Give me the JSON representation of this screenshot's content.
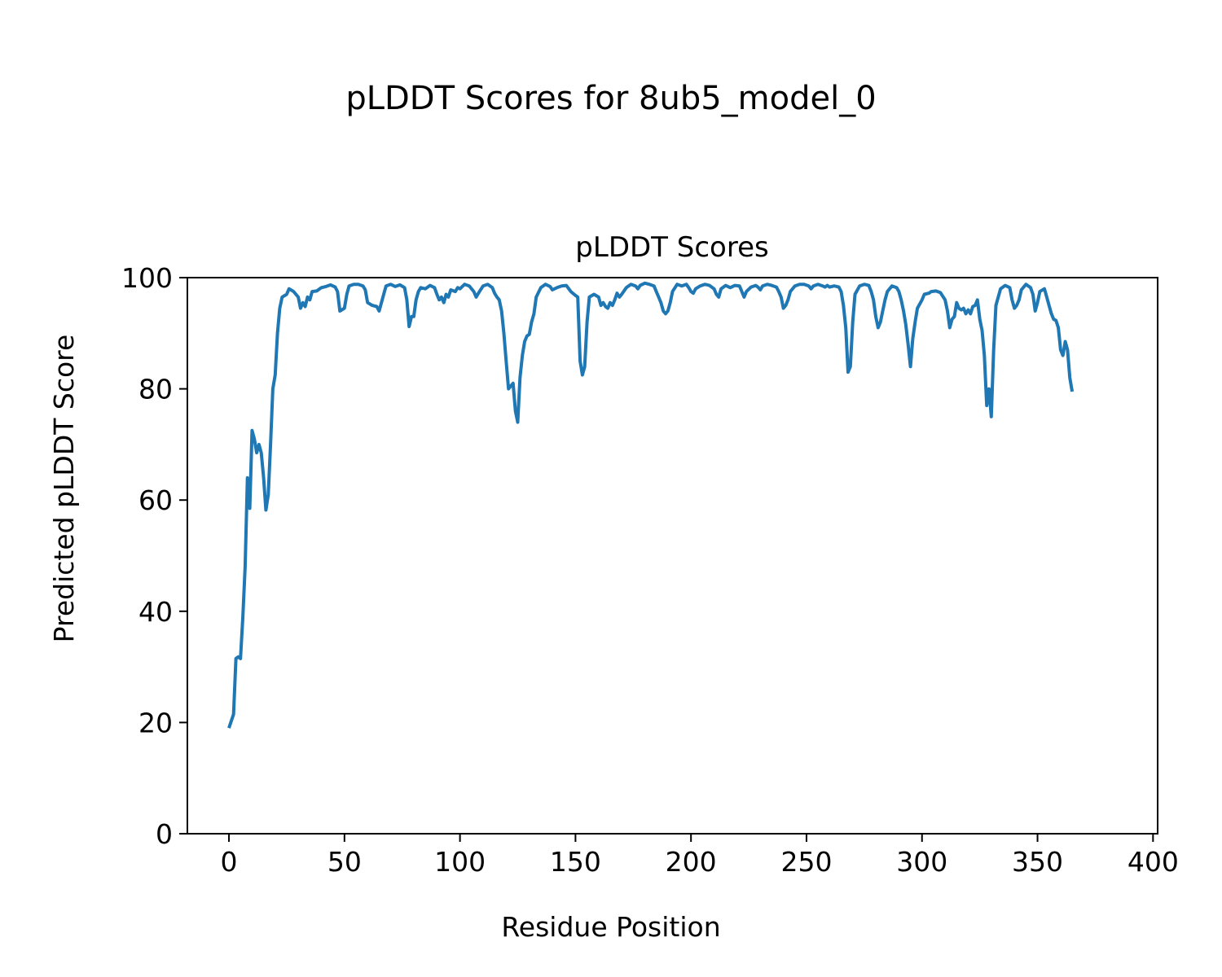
{
  "figure": {
    "suptitle": "pLDDT Scores for 8ub5_model_0"
  },
  "chart_data": {
    "type": "line",
    "title": "pLDDT Scores",
    "xlabel": "Residue Position",
    "ylabel": "Predicted pLDDT Score",
    "xlim": [
      -18,
      402
    ],
    "ylim": [
      0,
      100
    ],
    "xticks": [
      0,
      50,
      100,
      150,
      200,
      250,
      300,
      350,
      400
    ],
    "yticks": [
      0,
      20,
      40,
      60,
      80,
      100
    ],
    "xtick_labels": [
      "0",
      "50",
      "100",
      "150",
      "200",
      "250",
      "300",
      "350",
      "400"
    ],
    "ytick_labels": [
      "0",
      "20",
      "40",
      "60",
      "80",
      "100"
    ],
    "grid": false,
    "series": [
      {
        "color": "#1f77b4",
        "points": [
          [
            0,
            19
          ],
          [
            2,
            21.5
          ],
          [
            3,
            31.5
          ],
          [
            4,
            31.8
          ],
          [
            5,
            31.5
          ],
          [
            6,
            39
          ],
          [
            7,
            48
          ],
          [
            8,
            64
          ],
          [
            9,
            58.5
          ],
          [
            10,
            72.5
          ],
          [
            11,
            71
          ],
          [
            12,
            68.5
          ],
          [
            13,
            70
          ],
          [
            14,
            68.5
          ],
          [
            15,
            64
          ],
          [
            16,
            58.2
          ],
          [
            17,
            61
          ],
          [
            18,
            70
          ],
          [
            19,
            80
          ],
          [
            20,
            82.5
          ],
          [
            21,
            90
          ],
          [
            22,
            94.5
          ],
          [
            23,
            96.5
          ],
          [
            25,
            97
          ],
          [
            26,
            98
          ],
          [
            28,
            97.5
          ],
          [
            30,
            96.5
          ],
          [
            31,
            94.5
          ],
          [
            32,
            95.5
          ],
          [
            33,
            94.8
          ],
          [
            34,
            96.5
          ],
          [
            35,
            96
          ],
          [
            36,
            97.5
          ],
          [
            38,
            97.6
          ],
          [
            40,
            98.2
          ],
          [
            42,
            98.4
          ],
          [
            44,
            98.7
          ],
          [
            46,
            98.3
          ],
          [
            47,
            97.5
          ],
          [
            48,
            94
          ],
          [
            50,
            94.5
          ],
          [
            51,
            97
          ],
          [
            52,
            98.5
          ],
          [
            54,
            98.8
          ],
          [
            56,
            98.8
          ],
          [
            58,
            98.5
          ],
          [
            59,
            97.8
          ],
          [
            60,
            95.5
          ],
          [
            62,
            95
          ],
          [
            64,
            94.8
          ],
          [
            65,
            94
          ],
          [
            67,
            97
          ],
          [
            68,
            98.5
          ],
          [
            70,
            98.8
          ],
          [
            72,
            98.4
          ],
          [
            74,
            98.7
          ],
          [
            76,
            98.2
          ],
          [
            77,
            96
          ],
          [
            78,
            91.2
          ],
          [
            79,
            93
          ],
          [
            80,
            93
          ],
          [
            81,
            96
          ],
          [
            82,
            97.5
          ],
          [
            83,
            98.2
          ],
          [
            85,
            98
          ],
          [
            87,
            98.6
          ],
          [
            89,
            98.2
          ],
          [
            90,
            97
          ],
          [
            91,
            96
          ],
          [
            92,
            96.5
          ],
          [
            93,
            95.5
          ],
          [
            94,
            97
          ],
          [
            95,
            96.5
          ],
          [
            96,
            97.8
          ],
          [
            98,
            97.5
          ],
          [
            99,
            98.2
          ],
          [
            100,
            98
          ],
          [
            102,
            98.8
          ],
          [
            104,
            98.5
          ],
          [
            106,
            97.5
          ],
          [
            107,
            96.5
          ],
          [
            108,
            97.2
          ],
          [
            110,
            98.5
          ],
          [
            112,
            98.8
          ],
          [
            114,
            98.2
          ],
          [
            115,
            97.2
          ],
          [
            116,
            96.5
          ],
          [
            117,
            96
          ],
          [
            118,
            94
          ],
          [
            119,
            90
          ],
          [
            120,
            85
          ],
          [
            121,
            80
          ],
          [
            122,
            80.5
          ],
          [
            123,
            81
          ],
          [
            124,
            76
          ],
          [
            125,
            74
          ],
          [
            126,
            82
          ],
          [
            127,
            86
          ],
          [
            128,
            88.5
          ],
          [
            129,
            89.5
          ],
          [
            130,
            89.8
          ],
          [
            131,
            92
          ],
          [
            132,
            93.5
          ],
          [
            133,
            96.5
          ],
          [
            135,
            98.2
          ],
          [
            137,
            98.8
          ],
          [
            139,
            98.4
          ],
          [
            140,
            97.8
          ],
          [
            142,
            98.2
          ],
          [
            144,
            98.5
          ],
          [
            146,
            98.6
          ],
          [
            148,
            97.5
          ],
          [
            150,
            96.8
          ],
          [
            151,
            96.5
          ],
          [
            152,
            85
          ],
          [
            153,
            82.5
          ],
          [
            154,
            84
          ],
          [
            155,
            92
          ],
          [
            156,
            96.5
          ],
          [
            158,
            97
          ],
          [
            160,
            96.5
          ],
          [
            161,
            95
          ],
          [
            162,
            95.5
          ],
          [
            163,
            94.8
          ],
          [
            164,
            94.5
          ],
          [
            165,
            95.5
          ],
          [
            166,
            95
          ],
          [
            167,
            96
          ],
          [
            168,
            97.2
          ],
          [
            169,
            96.5
          ],
          [
            170,
            97
          ],
          [
            172,
            98.2
          ],
          [
            174,
            98.8
          ],
          [
            176,
            98.5
          ],
          [
            177,
            98
          ],
          [
            178,
            98.6
          ],
          [
            180,
            99
          ],
          [
            182,
            98.8
          ],
          [
            184,
            98.5
          ],
          [
            185,
            97.5
          ],
          [
            186,
            96.5
          ],
          [
            187,
            95.5
          ],
          [
            188,
            94
          ],
          [
            189,
            93.5
          ],
          [
            190,
            94
          ],
          [
            191,
            95.5
          ],
          [
            192,
            97.5
          ],
          [
            194,
            98.8
          ],
          [
            196,
            98.5
          ],
          [
            198,
            98.8
          ],
          [
            199,
            98.2
          ],
          [
            200,
            97.5
          ],
          [
            201,
            97.2
          ],
          [
            202,
            98
          ],
          [
            204,
            98.5
          ],
          [
            206,
            98.8
          ],
          [
            208,
            98.6
          ],
          [
            210,
            98
          ],
          [
            211,
            97
          ],
          [
            212,
            96.5
          ],
          [
            213,
            98
          ],
          [
            215,
            98.6
          ],
          [
            217,
            98.2
          ],
          [
            219,
            98.6
          ],
          [
            221,
            98.5
          ],
          [
            222,
            97.5
          ],
          [
            223,
            96.5
          ],
          [
            224,
            97.5
          ],
          [
            226,
            98.3
          ],
          [
            228,
            98.6
          ],
          [
            229,
            98.3
          ],
          [
            230,
            97.8
          ],
          [
            231,
            98.5
          ],
          [
            233,
            98.8
          ],
          [
            235,
            98.6
          ],
          [
            237,
            98.3
          ],
          [
            238,
            97.5
          ],
          [
            239,
            96.5
          ],
          [
            240,
            94.5
          ],
          [
            241,
            95
          ],
          [
            242,
            96
          ],
          [
            243,
            97.5
          ],
          [
            245,
            98.5
          ],
          [
            247,
            98.8
          ],
          [
            249,
            98.8
          ],
          [
            251,
            98.5
          ],
          [
            252,
            98
          ],
          [
            253,
            98.5
          ],
          [
            255,
            98.8
          ],
          [
            257,
            98.5
          ],
          [
            258,
            98.3
          ],
          [
            259,
            98.6
          ],
          [
            260,
            98.3
          ],
          [
            262,
            98.5
          ],
          [
            264,
            98.3
          ],
          [
            265,
            97.5
          ],
          [
            266,
            95
          ],
          [
            267,
            91
          ],
          [
            268,
            83
          ],
          [
            269,
            84
          ],
          [
            270,
            92
          ],
          [
            271,
            97
          ],
          [
            273,
            98.5
          ],
          [
            275,
            98.8
          ],
          [
            277,
            98.6
          ],
          [
            278,
            97.5
          ],
          [
            279,
            96
          ],
          [
            280,
            93
          ],
          [
            281,
            91
          ],
          [
            282,
            92
          ],
          [
            283,
            94
          ],
          [
            284,
            96
          ],
          [
            285,
            97.5
          ],
          [
            287,
            98.5
          ],
          [
            289,
            98.2
          ],
          [
            290,
            97.5
          ],
          [
            291,
            96
          ],
          [
            292,
            94
          ],
          [
            293,
            91.5
          ],
          [
            294,
            88
          ],
          [
            295,
            84
          ],
          [
            296,
            89
          ],
          [
            297,
            92
          ],
          [
            298,
            94.5
          ],
          [
            300,
            96
          ],
          [
            301,
            97
          ],
          [
            303,
            97.2
          ],
          [
            304,
            97.5
          ],
          [
            306,
            97.6
          ],
          [
            308,
            97.3
          ],
          [
            310,
            96
          ],
          [
            311,
            94
          ],
          [
            312,
            91
          ],
          [
            313,
            92.5
          ],
          [
            314,
            93
          ],
          [
            315,
            95.5
          ],
          [
            316,
            94.5
          ],
          [
            317,
            94.2
          ],
          [
            318,
            94.5
          ],
          [
            319,
            93.5
          ],
          [
            320,
            94.2
          ],
          [
            321,
            93.5
          ],
          [
            322,
            94.8
          ],
          [
            323,
            95
          ],
          [
            324,
            96
          ],
          [
            325,
            92.5
          ],
          [
            326,
            90.5
          ],
          [
            327,
            86
          ],
          [
            328,
            77
          ],
          [
            329,
            80
          ],
          [
            330,
            75
          ],
          [
            331,
            87
          ],
          [
            332,
            95
          ],
          [
            334,
            98
          ],
          [
            336,
            98.6
          ],
          [
            338,
            98.2
          ],
          [
            339,
            96
          ],
          [
            340,
            94.5
          ],
          [
            341,
            95
          ],
          [
            342,
            96
          ],
          [
            343,
            97.8
          ],
          [
            345,
            98.8
          ],
          [
            347,
            98.2
          ],
          [
            348,
            97
          ],
          [
            349,
            94
          ],
          [
            350,
            95.5
          ],
          [
            351,
            97.5
          ],
          [
            353,
            98
          ],
          [
            354,
            96.5
          ],
          [
            355,
            95
          ],
          [
            356,
            93.5
          ],
          [
            357,
            92.5
          ],
          [
            358,
            92.3
          ],
          [
            359,
            91
          ],
          [
            360,
            87
          ],
          [
            361,
            86
          ],
          [
            362,
            88.5
          ],
          [
            363,
            87
          ],
          [
            364,
            82
          ],
          [
            365,
            79.5
          ]
        ]
      }
    ]
  }
}
